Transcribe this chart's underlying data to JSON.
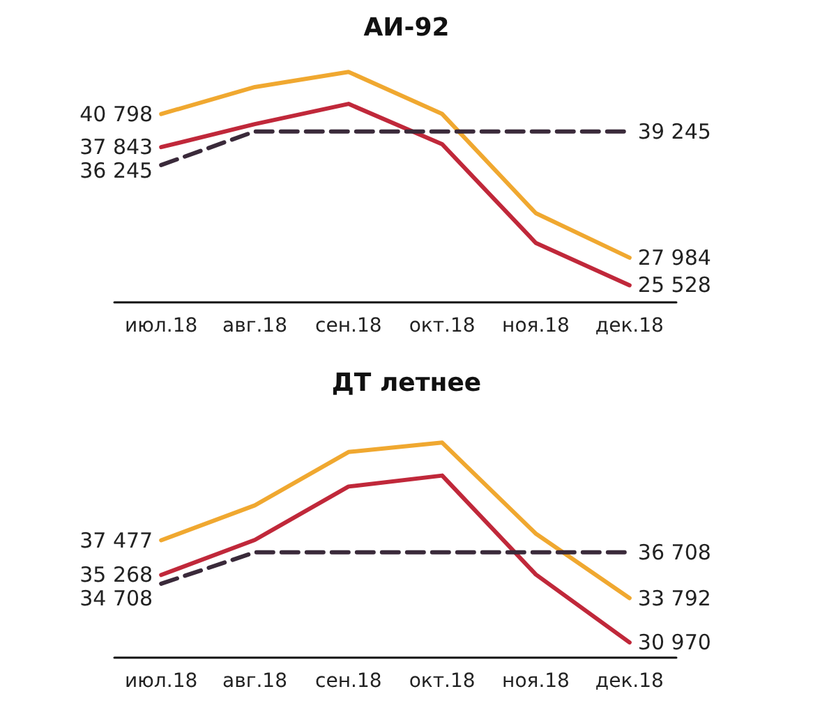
{
  "chart_data": [
    {
      "type": "line",
      "title": "АИ-92",
      "categories": [
        "июл.18",
        "авг.18",
        "сен.18",
        "окт.18",
        "ноя.18",
        "дек.18"
      ],
      "marker": "none",
      "tick_labels": "x",
      "series": [
        {
          "color": "#f0a830",
          "line_style": "solid",
          "values": [
            40798,
            43200,
            44550,
            40800,
            31950,
            27984
          ],
          "value_labels": [
            "40 798",
            null,
            null,
            null,
            null,
            "27 984"
          ]
        },
        {
          "color": "#c0283a",
          "line_style": "solid",
          "values": [
            37843,
            39900,
            41700,
            38100,
            29300,
            25528
          ],
          "value_labels": [
            "37 843",
            null,
            null,
            null,
            null,
            "25 528"
          ]
        },
        {
          "color": "#3a2a3a",
          "line_style": "dashed",
          "values": [
            36245,
            39245,
            39245,
            39245,
            39245,
            39245
          ],
          "value_labels": [
            "36 245",
            null,
            null,
            null,
            null,
            "39 245"
          ]
        }
      ]
    },
    {
      "type": "line",
      "title": "ДТ летнее",
      "categories": [
        "июл.18",
        "авг.18",
        "сен.18",
        "окт.18",
        "ноя.18",
        "дек.18"
      ],
      "marker": "none",
      "tick_labels": "x",
      "series": [
        {
          "color": "#f0a830",
          "line_style": "solid",
          "values": [
            37477,
            39700,
            43100,
            43700,
            37900,
            33792
          ],
          "value_labels": [
            "37 477",
            null,
            null,
            null,
            null,
            "33 792"
          ]
        },
        {
          "color": "#c0283a",
          "line_style": "solid",
          "values": [
            35268,
            37500,
            40900,
            41600,
            35300,
            30970
          ],
          "value_labels": [
            "35 268",
            null,
            null,
            null,
            null,
            "30 970"
          ]
        },
        {
          "color": "#3a2a3a",
          "line_style": "dashed",
          "values": [
            34708,
            36708,
            36708,
            36708,
            36708,
            36708
          ],
          "value_labels": [
            "34 708",
            null,
            null,
            null,
            null,
            "36 708"
          ]
        }
      ]
    }
  ]
}
